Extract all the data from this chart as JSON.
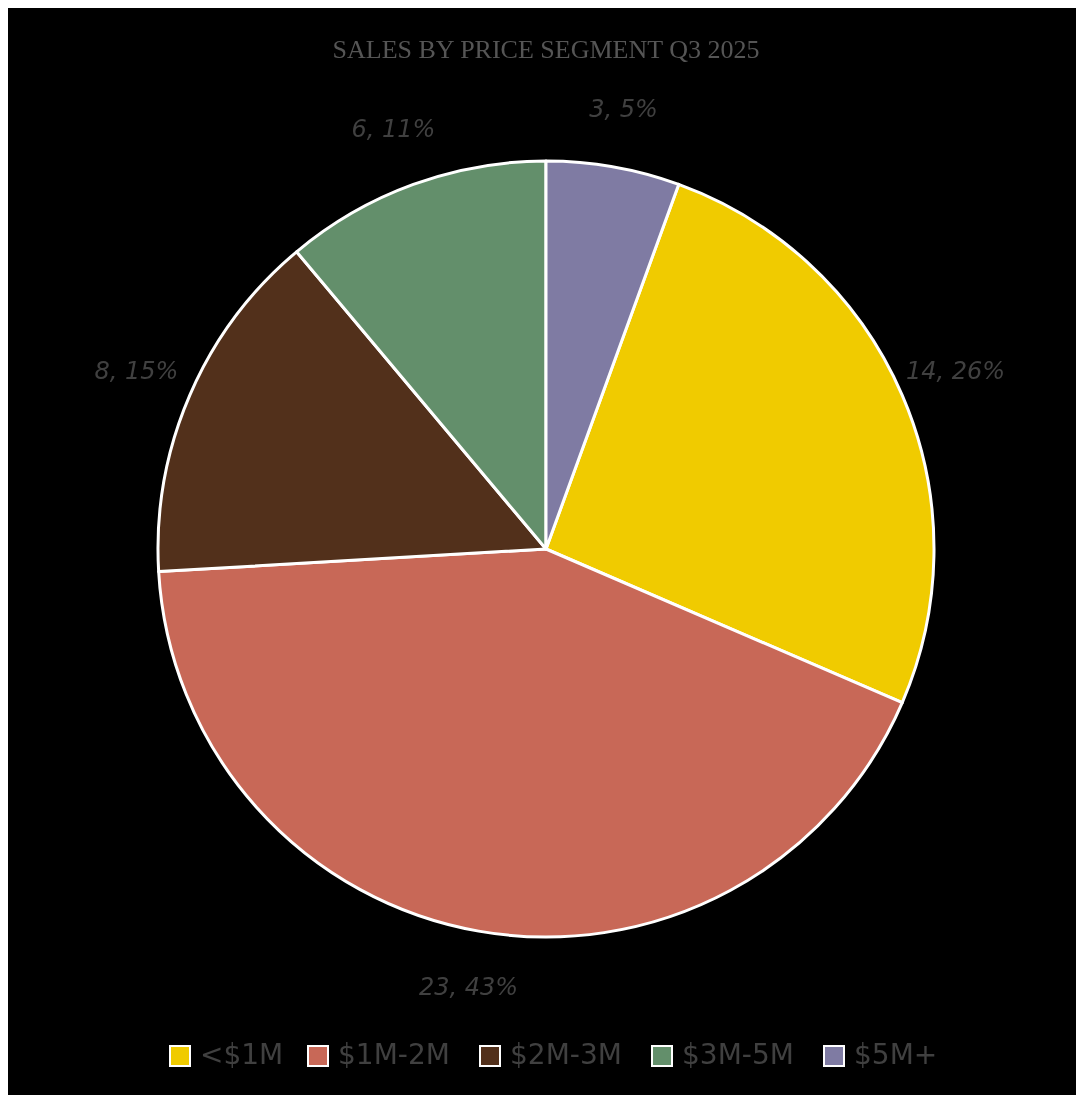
{
  "chart_data": {
    "type": "pie",
    "title": "SALES BY PRICE SEGMENT Q3 2025",
    "categories": [
      "<$1M",
      "$1M-2M",
      "$2M-3M",
      "$3M-5M",
      "$5M+"
    ],
    "values": [
      14,
      23,
      8,
      6,
      3
    ],
    "colors": [
      "#f0cb00",
      "#c86857",
      "#52301b",
      "#638f6b",
      "#7f7ba3"
    ],
    "value_labels": [
      "14, 26%",
      "23, 43%",
      "8, 15%",
      "6, 11%",
      "3, 5%"
    ],
    "legend": "bottom"
  }
}
